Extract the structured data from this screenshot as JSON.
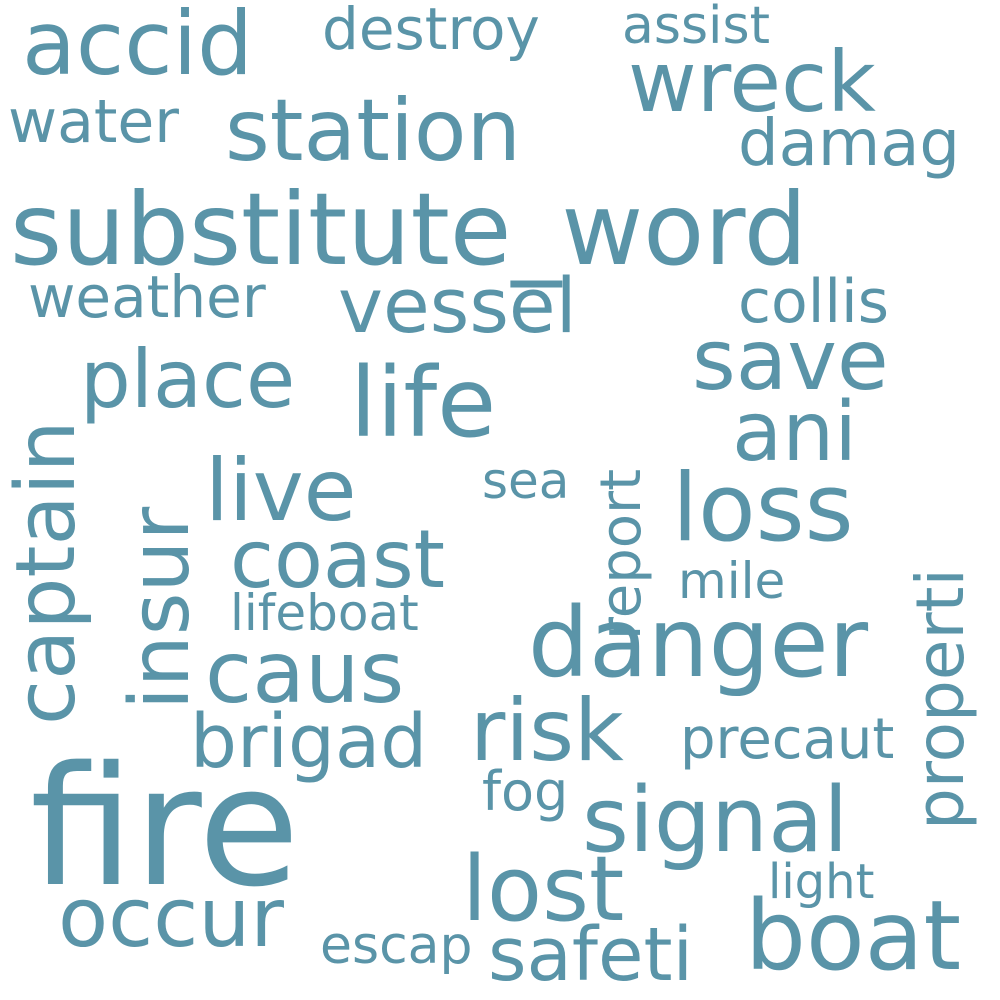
{
  "color": "#5a94a8",
  "words": [
    {
      "text": "substitute_word"
    },
    {
      "text": "fire"
    },
    {
      "text": "accid"
    },
    {
      "text": "destroy"
    },
    {
      "text": "assist"
    },
    {
      "text": "wreck"
    },
    {
      "text": "station"
    },
    {
      "text": "water"
    },
    {
      "text": "damag"
    },
    {
      "text": "weather"
    },
    {
      "text": "vessel"
    },
    {
      "text": "collis"
    },
    {
      "text": "save"
    },
    {
      "text": "captain"
    },
    {
      "text": "place"
    },
    {
      "text": "life"
    },
    {
      "text": "report"
    },
    {
      "text": "ani"
    },
    {
      "text": "insur"
    },
    {
      "text": "live"
    },
    {
      "text": "sea"
    },
    {
      "text": "loss"
    },
    {
      "text": "properti"
    },
    {
      "text": "coast"
    },
    {
      "text": "mile"
    },
    {
      "text": "lifeboat"
    },
    {
      "text": "danger"
    },
    {
      "text": "caus"
    },
    {
      "text": "brigad"
    },
    {
      "text": "risk"
    },
    {
      "text": "precaut"
    },
    {
      "text": "fog"
    },
    {
      "text": "signal"
    },
    {
      "text": "lost"
    },
    {
      "text": "light"
    },
    {
      "text": "occur"
    },
    {
      "text": "escap"
    },
    {
      "text": "safeti"
    },
    {
      "text": "boat"
    }
  ]
}
